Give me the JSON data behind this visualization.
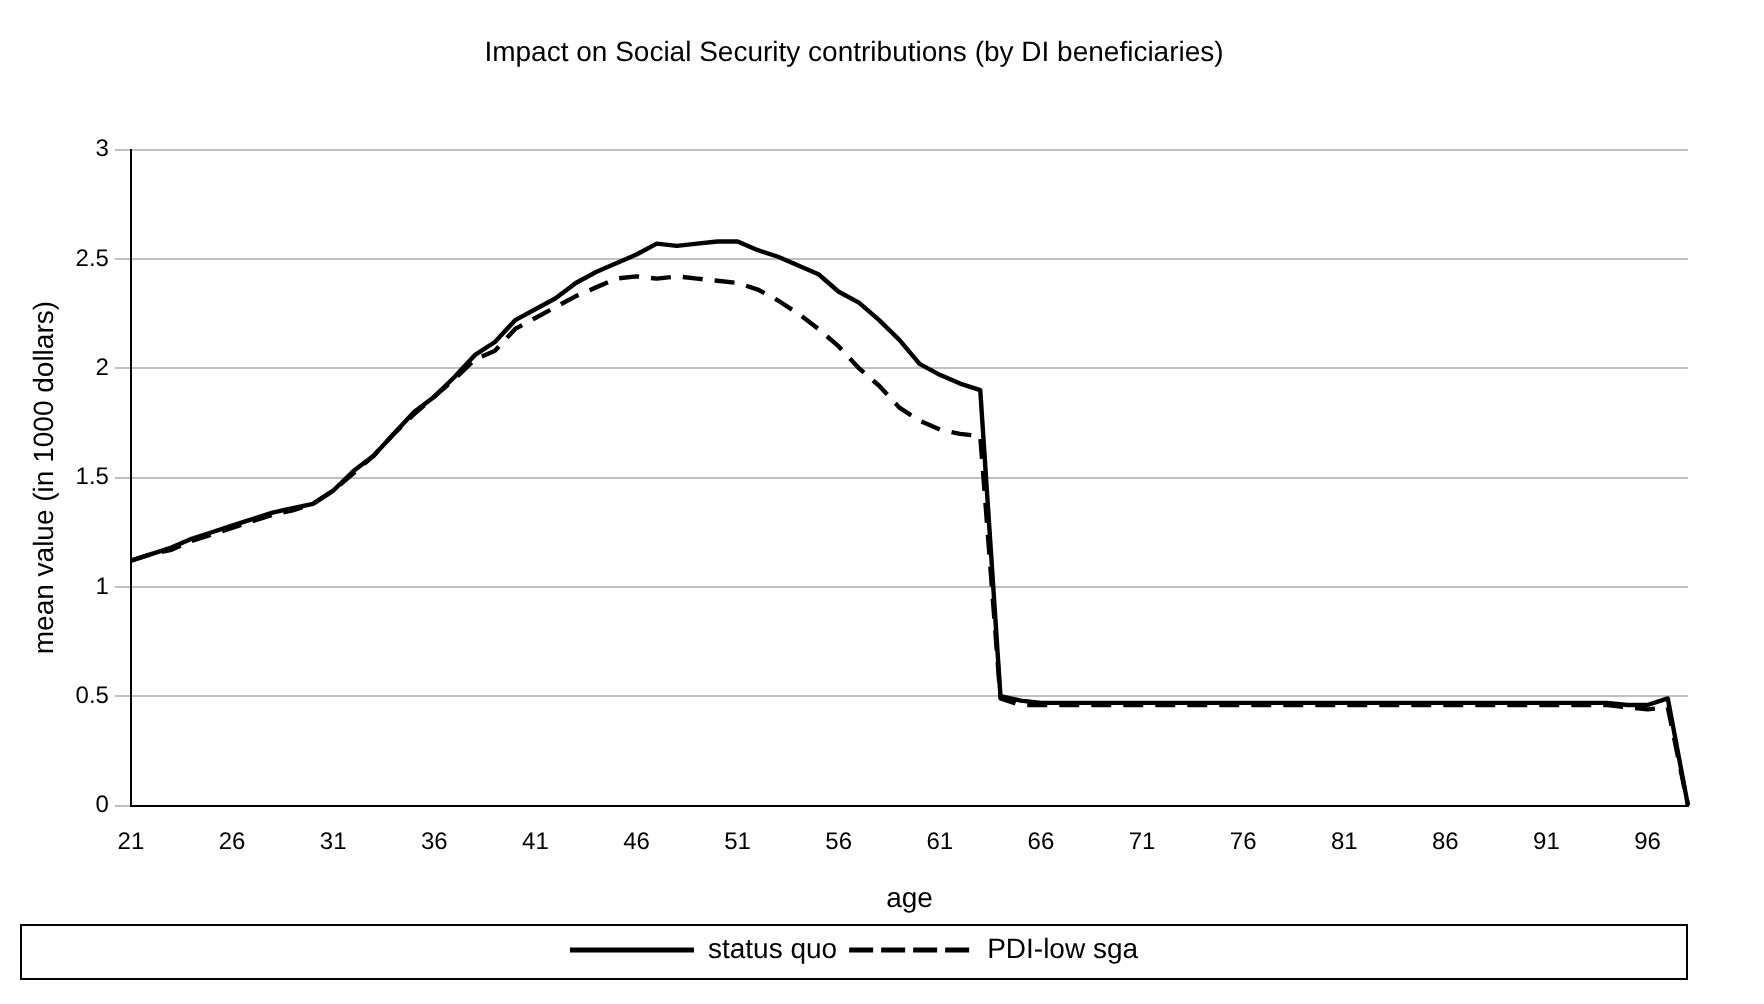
{
  "chart_data": {
    "type": "line",
    "title": "Impact on Social Security contributions (by DI beneficiaries)",
    "xlabel": "age",
    "ylabel": "mean value (in 1000 dollars)",
    "categories": [
      "21",
      null,
      null,
      null,
      null,
      "26",
      null,
      null,
      null,
      null,
      "31",
      null,
      null,
      null,
      null,
      "36",
      null,
      null,
      null,
      null,
      "41",
      null,
      null,
      null,
      null,
      "46",
      null,
      null,
      null,
      null,
      "51",
      null,
      null,
      null,
      null,
      "56",
      null,
      null,
      null,
      null,
      "61",
      null,
      null,
      null,
      null,
      "66",
      null,
      null,
      null,
      null,
      "71",
      null,
      null,
      null,
      null,
      "76",
      null,
      null,
      null,
      null,
      "81",
      null,
      null,
      null,
      null,
      "86",
      null,
      null,
      null,
      null,
      "91",
      null,
      null,
      null,
      null,
      "96",
      null,
      null
    ],
    "series": [
      {
        "name": "status quo",
        "color": "#000000",
        "line_style": "solid",
        "values": [
          1.12,
          1.15,
          1.18,
          1.22,
          1.25,
          1.28,
          1.31,
          1.34,
          1.36,
          1.38,
          1.44,
          1.53,
          1.6,
          1.7,
          1.8,
          1.87,
          1.96,
          2.06,
          2.12,
          2.22,
          2.27,
          2.32,
          2.39,
          2.44,
          2.48,
          2.52,
          2.57,
          2.56,
          2.57,
          2.58,
          2.58,
          2.54,
          2.51,
          2.47,
          2.43,
          2.35,
          2.3,
          2.22,
          2.13,
          2.02,
          1.97,
          1.93,
          1.9,
          0.5,
          0.48,
          0.47,
          0.47,
          0.47,
          0.47,
          0.47,
          0.47,
          0.47,
          0.47,
          0.47,
          0.47,
          0.47,
          0.47,
          0.47,
          0.47,
          0.47,
          0.47,
          0.47,
          0.47,
          0.47,
          0.47,
          0.47,
          0.47,
          0.47,
          0.47,
          0.47,
          0.47,
          0.47,
          0.47,
          0.47,
          0.46,
          0.46,
          0.49,
          0
        ]
      },
      {
        "name": "PDI-low sga",
        "color": "#000000",
        "line_style": "dashed",
        "values": [
          1.12,
          1.15,
          1.17,
          1.21,
          1.24,
          1.27,
          1.3,
          1.33,
          1.35,
          1.38,
          1.44,
          1.52,
          1.6,
          1.7,
          1.79,
          1.87,
          1.95,
          2.04,
          2.08,
          2.18,
          2.23,
          2.28,
          2.33,
          2.37,
          2.41,
          2.42,
          2.41,
          2.42,
          2.41,
          2.4,
          2.39,
          2.36,
          2.31,
          2.25,
          2.18,
          2.1,
          2.0,
          1.92,
          1.82,
          1.76,
          1.72,
          1.7,
          1.69,
          0.49,
          0.46,
          0.46,
          0.46,
          0.46,
          0.46,
          0.46,
          0.46,
          0.46,
          0.46,
          0.46,
          0.46,
          0.46,
          0.46,
          0.46,
          0.46,
          0.46,
          0.46,
          0.46,
          0.46,
          0.46,
          0.46,
          0.46,
          0.46,
          0.46,
          0.46,
          0.46,
          0.46,
          0.46,
          0.46,
          0.46,
          0.45,
          0.44,
          0.45,
          0
        ]
      }
    ],
    "ylim": [
      0,
      3
    ],
    "yticks": [
      0,
      0.5,
      1,
      1.5,
      2,
      2.5,
      3
    ],
    "grid": "y",
    "legend": "bottom",
    "marker": "none"
  }
}
